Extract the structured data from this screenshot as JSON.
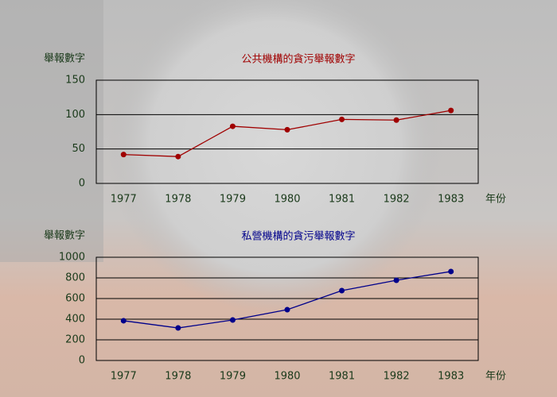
{
  "chart_data": [
    {
      "type": "line",
      "title": "公共機構的貪污舉報數字",
      "y_label": "舉報數字",
      "x_label": "年份",
      "categories": [
        "1977",
        "1978",
        "1979",
        "1980",
        "1981",
        "1982",
        "1983"
      ],
      "values": [
        42,
        39,
        83,
        78,
        93,
        92,
        106
      ],
      "color": "#a00000",
      "ylim": [
        0,
        150
      ],
      "yticks": [
        0,
        50,
        100,
        150
      ],
      "grid": true
    },
    {
      "type": "line",
      "title": "私營機構的貪污舉報數字",
      "y_label": "舉報數字",
      "x_label": "年份",
      "categories": [
        "1977",
        "1978",
        "1979",
        "1980",
        "1981",
        "1982",
        "1983"
      ],
      "values": [
        385,
        315,
        392,
        492,
        677,
        777,
        862
      ],
      "color": "#00008b",
      "ylim": [
        0,
        1000
      ],
      "yticks": [
        0,
        200,
        400,
        600,
        800,
        1000
      ],
      "grid": true
    }
  ]
}
